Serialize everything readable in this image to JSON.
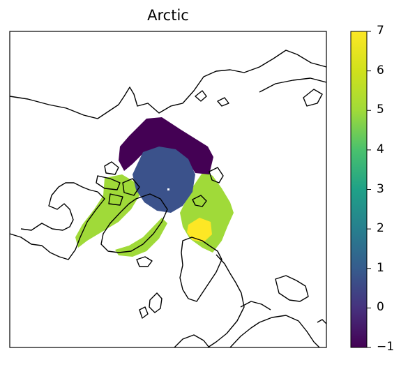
{
  "title": "Arctic",
  "colorbar": {
    "colormap": "viridis",
    "min": -1,
    "max": 7,
    "ticks": [
      "7",
      "6",
      "5",
      "4",
      "3",
      "2",
      "1",
      "0",
      "−1"
    ]
  },
  "legend_colors": {
    "class_-1": "#440154",
    "class_1": "#3b528b",
    "class_6": "#a0da39",
    "class_7": "#fde725",
    "coastline": "#000000"
  }
}
